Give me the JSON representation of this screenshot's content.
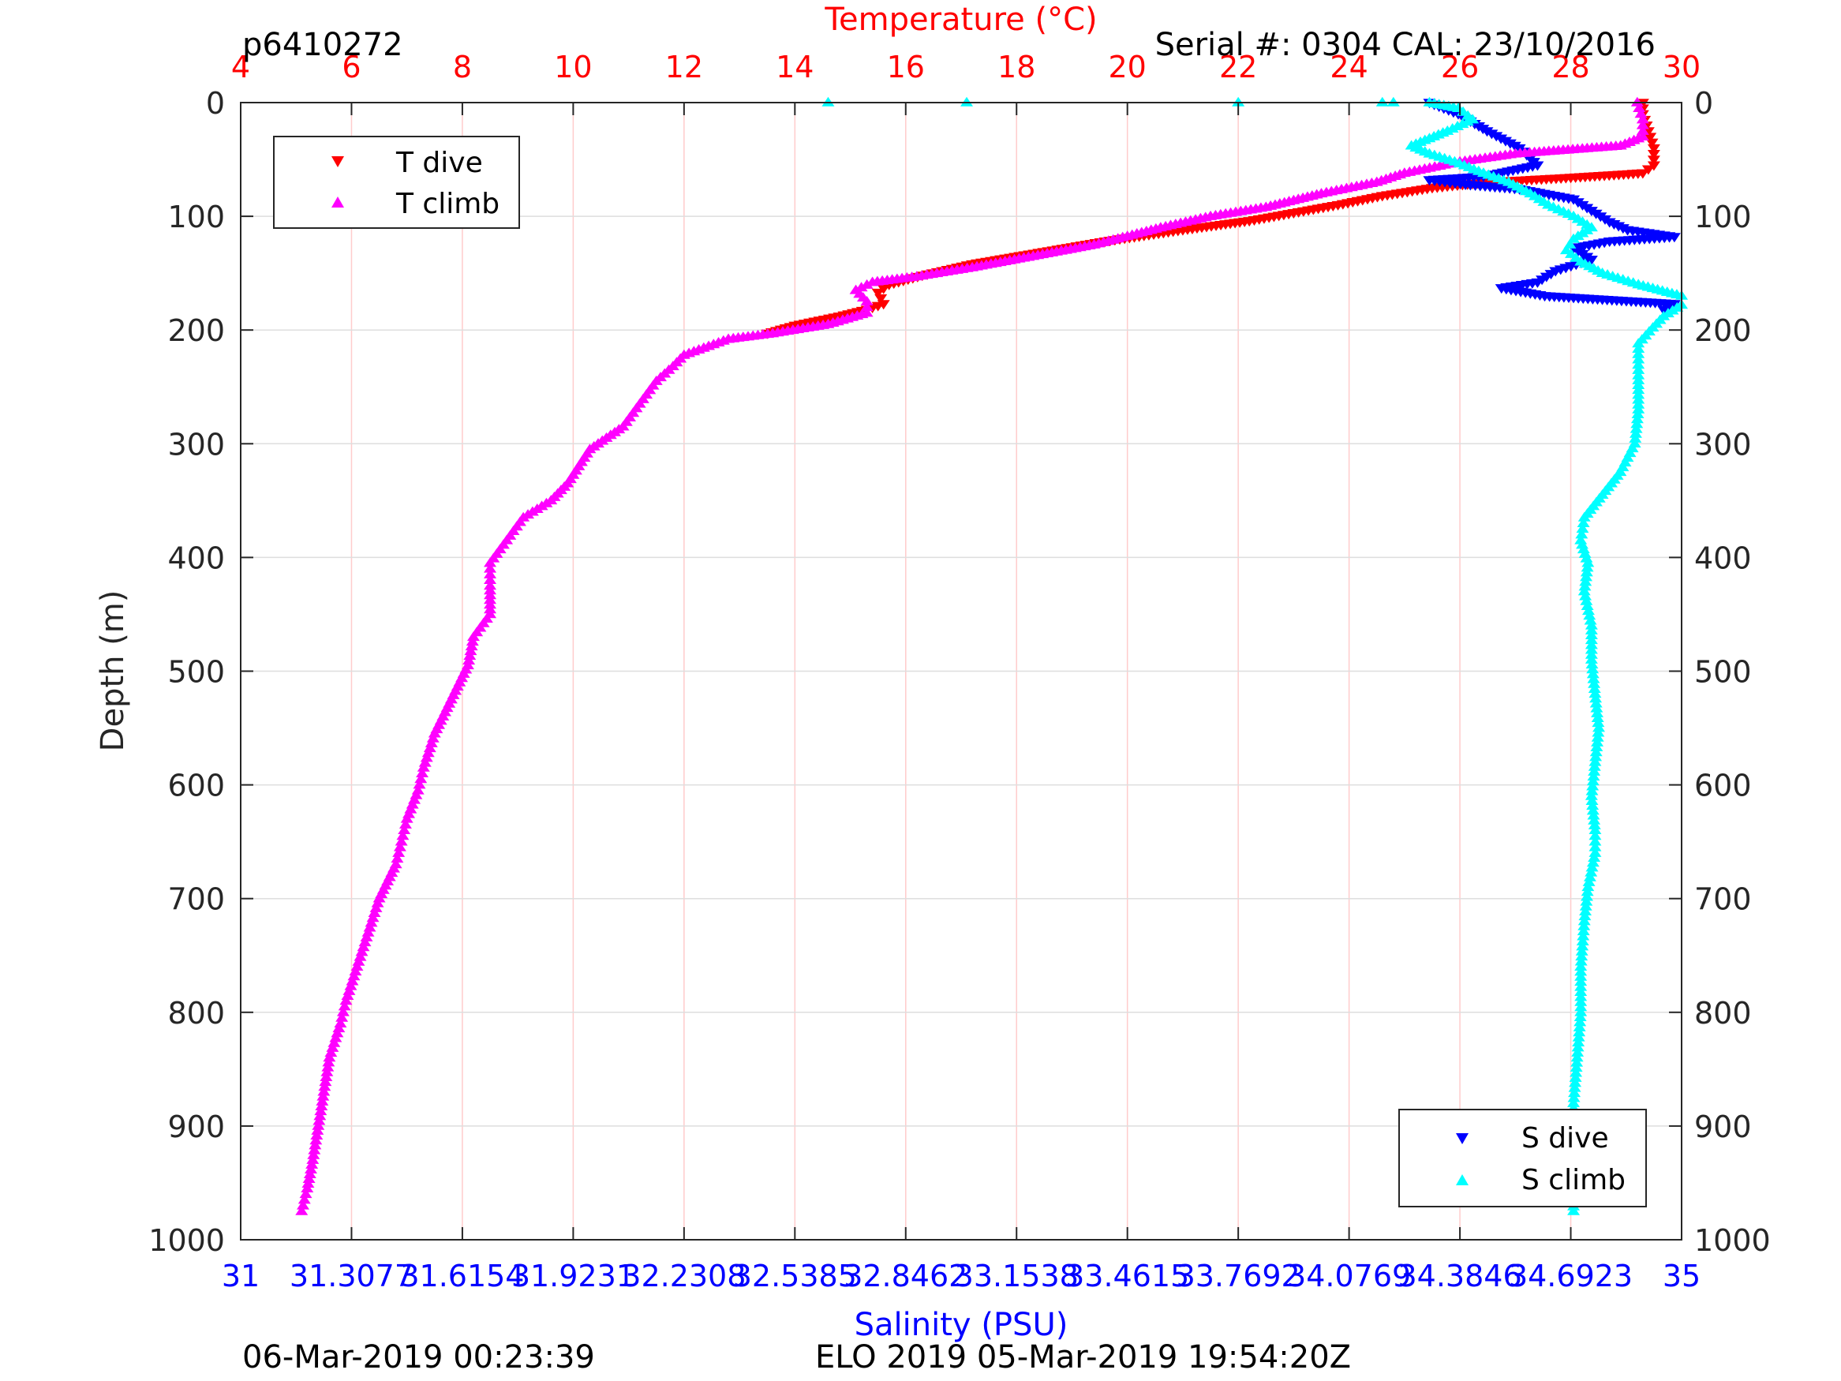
{
  "header": {
    "profile_id": "p6410272",
    "serial_cal": "Serial #: 0304  CAL: 23/10/2016"
  },
  "footer": {
    "left": "06-Mar-2019 00:23:39",
    "right": "ELO 2019 05-Mar-2019 19:54:20Z"
  },
  "colors": {
    "t_dive": "#ff0000",
    "t_climb": "#ff00ff",
    "s_dive": "#0000ff",
    "s_climb": "#00ffff",
    "temp_axis": "#ff0000",
    "sal_axis": "#0000ff"
  },
  "chart_data": {
    "type": "scatter",
    "top_axis_label": "Temperature (°C)",
    "bottom_axis_label": "Salinity (PSU)",
    "ylabel": "Depth (m)",
    "temperature_range": [
      4,
      30
    ],
    "temperature_ticks": [
      "4",
      "6",
      "8",
      "10",
      "12",
      "14",
      "16",
      "18",
      "20",
      "22",
      "24",
      "26",
      "28",
      "30"
    ],
    "salinity_range": [
      31,
      35
    ],
    "salinity_ticks": [
      "31",
      "31.3077",
      "31.6154",
      "31.9231",
      "32.2308",
      "32.5385",
      "32.8462",
      "33.1538",
      "33.4615",
      "33.7692",
      "34.0769",
      "34.3846",
      "34.6923",
      "35"
    ],
    "depth_range": [
      0,
      1000
    ],
    "depth_reversed": true,
    "depth_ticks": [
      "0",
      "100",
      "200",
      "300",
      "400",
      "500",
      "600",
      "700",
      "800",
      "900",
      "1000"
    ],
    "grid": true,
    "legend_temperature": {
      "placement": "top-left",
      "entries": [
        "T dive",
        "T climb"
      ]
    },
    "legend_salinity": {
      "placement": "bottom-right",
      "entries": [
        "S dive",
        "S climb"
      ]
    },
    "series": [
      {
        "name": "T dive",
        "axis": "temperature",
        "marker": "triangle-down",
        "points": [
          [
            29.3,
            0
          ],
          [
            29.3,
            10
          ],
          [
            29.4,
            25
          ],
          [
            29.5,
            40
          ],
          [
            29.5,
            55
          ],
          [
            29.3,
            62
          ],
          [
            28.0,
            66
          ],
          [
            26.5,
            70
          ],
          [
            25.5,
            75
          ],
          [
            24.6,
            82
          ],
          [
            23.8,
            90
          ],
          [
            23.0,
            97
          ],
          [
            22.2,
            104
          ],
          [
            21.0,
            112
          ],
          [
            19.6,
            122
          ],
          [
            18.4,
            132
          ],
          [
            17.2,
            142
          ],
          [
            16.3,
            152
          ],
          [
            15.7,
            160
          ],
          [
            15.5,
            167
          ],
          [
            15.6,
            177
          ],
          [
            15.3,
            182
          ],
          [
            14.8,
            188
          ],
          [
            14.0,
            196
          ],
          [
            13.5,
            203
          ]
        ]
      },
      {
        "name": "T climb",
        "axis": "temperature",
        "marker": "triangle-up",
        "points": [
          [
            29.2,
            0
          ],
          [
            29.3,
            15
          ],
          [
            29.3,
            30
          ],
          [
            28.9,
            38
          ],
          [
            27.0,
            45
          ],
          [
            26.0,
            52
          ],
          [
            25.0,
            62
          ],
          [
            24.5,
            70
          ],
          [
            23.5,
            80
          ],
          [
            22.5,
            92
          ],
          [
            21.5,
            100
          ],
          [
            20.6,
            110
          ],
          [
            19.4,
            125
          ],
          [
            18.3,
            135
          ],
          [
            17.2,
            145
          ],
          [
            16.2,
            153
          ],
          [
            15.4,
            158
          ],
          [
            15.1,
            165
          ],
          [
            15.3,
            175
          ],
          [
            15.3,
            185
          ],
          [
            14.6,
            195
          ],
          [
            13.6,
            203
          ],
          [
            12.8,
            208
          ],
          [
            12.0,
            222
          ],
          [
            11.8,
            232
          ],
          [
            11.5,
            245
          ],
          [
            11.2,
            265
          ],
          [
            10.9,
            285
          ],
          [
            10.3,
            305
          ],
          [
            9.9,
            335
          ],
          [
            9.6,
            350
          ],
          [
            9.1,
            365
          ],
          [
            8.8,
            385
          ],
          [
            8.5,
            405
          ],
          [
            8.5,
            425
          ],
          [
            8.5,
            450
          ],
          [
            8.2,
            470
          ],
          [
            8.1,
            495
          ],
          [
            7.8,
            525
          ],
          [
            7.5,
            555
          ],
          [
            7.3,
            585
          ],
          [
            7.2,
            605
          ],
          [
            7.0,
            630
          ],
          [
            6.9,
            650
          ],
          [
            6.8,
            670
          ],
          [
            6.5,
            700
          ],
          [
            6.3,
            730
          ],
          [
            6.1,
            760
          ],
          [
            5.9,
            790
          ],
          [
            5.8,
            810
          ],
          [
            5.6,
            840
          ],
          [
            5.5,
            870
          ],
          [
            5.4,
            900
          ],
          [
            5.3,
            930
          ],
          [
            5.2,
            955
          ],
          [
            5.1,
            975
          ]
        ]
      },
      {
        "name": "S dive",
        "axis": "salinity",
        "marker": "triangle-down",
        "points": [
          [
            34.3,
            0
          ],
          [
            34.38,
            10
          ],
          [
            34.46,
            25
          ],
          [
            34.55,
            40
          ],
          [
            34.6,
            55
          ],
          [
            34.45,
            65
          ],
          [
            34.3,
            68
          ],
          [
            34.4,
            72
          ],
          [
            34.55,
            76
          ],
          [
            34.7,
            85
          ],
          [
            34.75,
            95
          ],
          [
            34.8,
            105
          ],
          [
            34.85,
            112
          ],
          [
            34.98,
            118
          ],
          [
            34.8,
            122
          ],
          [
            34.7,
            128
          ],
          [
            34.75,
            138
          ],
          [
            34.65,
            148
          ],
          [
            34.6,
            158
          ],
          [
            34.5,
            163
          ],
          [
            34.62,
            170
          ],
          [
            34.98,
            177
          ],
          [
            34.95,
            182
          ]
        ]
      },
      {
        "name": "S climb",
        "axis": "salinity",
        "marker": "triangle-up",
        "points": [
          [
            34.3,
            0
          ],
          [
            34.38,
            5
          ],
          [
            34.42,
            15
          ],
          [
            34.35,
            25
          ],
          [
            34.25,
            38
          ],
          [
            34.3,
            45
          ],
          [
            34.37,
            52
          ],
          [
            34.45,
            62
          ],
          [
            34.52,
            70
          ],
          [
            34.58,
            80
          ],
          [
            34.63,
            90
          ],
          [
            34.7,
            100
          ],
          [
            34.75,
            110
          ],
          [
            34.7,
            120
          ],
          [
            34.68,
            130
          ],
          [
            34.72,
            140
          ],
          [
            34.78,
            150
          ],
          [
            34.88,
            160
          ],
          [
            35.0,
            170
          ],
          [
            35.0,
            178
          ],
          [
            34.95,
            188
          ],
          [
            34.92,
            198
          ],
          [
            34.88,
            212
          ],
          [
            34.88,
            240
          ],
          [
            34.88,
            270
          ],
          [
            34.87,
            300
          ],
          [
            34.83,
            325
          ],
          [
            34.78,
            345
          ],
          [
            34.73,
            365
          ],
          [
            34.72,
            385
          ],
          [
            34.74,
            405
          ],
          [
            34.73,
            430
          ],
          [
            34.75,
            460
          ],
          [
            34.75,
            490
          ],
          [
            34.76,
            520
          ],
          [
            34.77,
            550
          ],
          [
            34.76,
            580
          ],
          [
            34.75,
            610
          ],
          [
            34.76,
            640
          ],
          [
            34.76,
            660
          ],
          [
            34.74,
            690
          ],
          [
            34.73,
            720
          ],
          [
            34.72,
            760
          ],
          [
            34.72,
            800
          ],
          [
            34.71,
            840
          ],
          [
            34.7,
            880
          ],
          [
            34.7,
            920
          ],
          [
            34.7,
            950
          ],
          [
            34.7,
            975
          ]
        ]
      },
      {
        "name": "",
        "axis": "temperature",
        "marker": "triangle-up",
        "points": [
          [
            14.6,
            0
          ],
          [
            17.1,
            0
          ],
          [
            22.0,
            0
          ],
          [
            24.6,
            0
          ],
          [
            24.8,
            0
          ]
        ]
      }
    ]
  }
}
